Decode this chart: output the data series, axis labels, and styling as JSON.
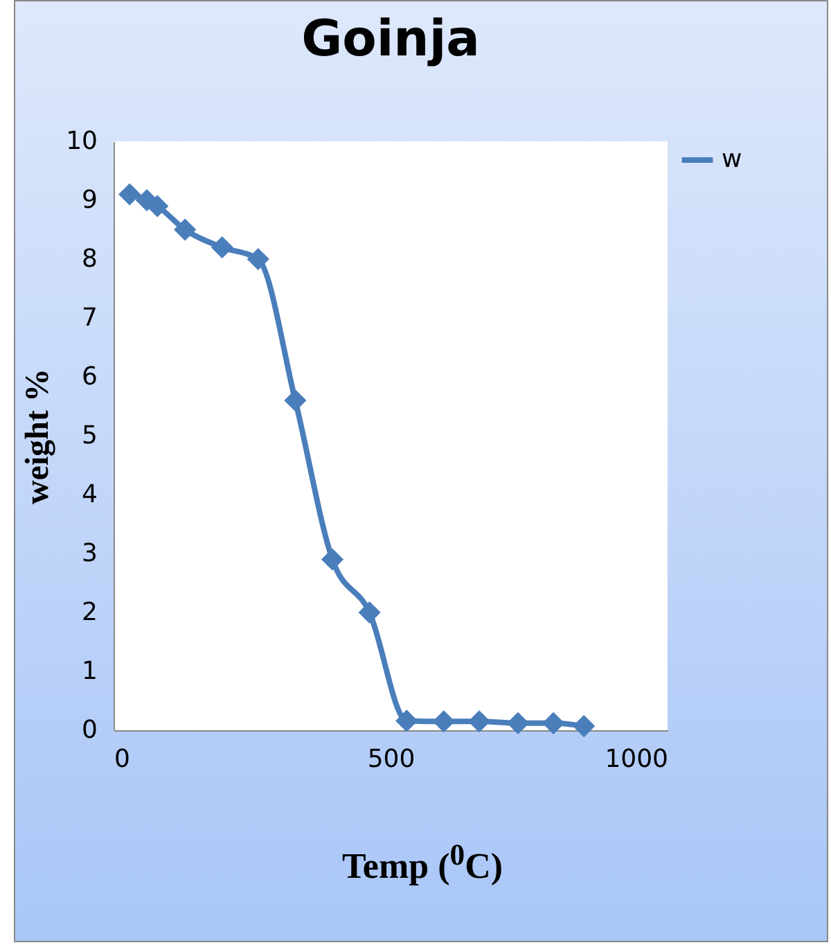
{
  "chart_data": {
    "type": "line",
    "title": "Goinja",
    "xlabel": "Temp ($^{0}$C)",
    "ylabel": "weight %",
    "x": [
      29,
      60,
      79,
      129,
      196,
      261,
      328,
      395,
      462,
      529,
      596,
      660,
      730,
      794,
      849
    ],
    "series": [
      {
        "name": "w",
        "color": "#4a7ebb",
        "values": [
          9.1,
          9.0,
          8.9,
          8.5,
          8.2,
          8.0,
          5.6,
          2.9,
          2.0,
          0.16,
          0.15,
          0.15,
          0.12,
          0.12,
          0.07
        ]
      }
    ],
    "xlim": [
      0,
      1000
    ],
    "xticks": [
      0,
      500,
      1000
    ],
    "ylim": [
      0,
      10
    ],
    "yticks": [
      0,
      1,
      2,
      3,
      4,
      5,
      6,
      7,
      8,
      9,
      10
    ],
    "legend": "right",
    "marker": "diamond",
    "line_style": "solid",
    "grid": false
  }
}
